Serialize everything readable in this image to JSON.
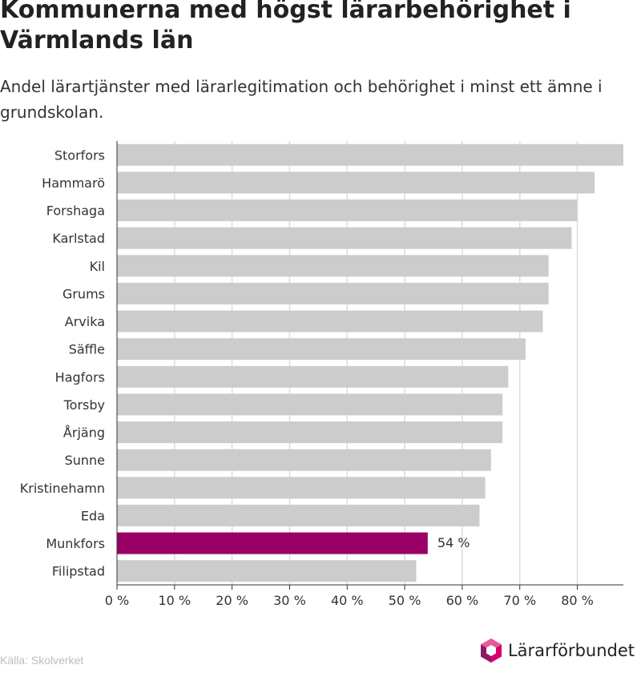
{
  "title": "Kommunerna med högst lärarbehörighet i Värmlands län",
  "subtitle": "Andel lärartjänster med lärarlegitimation och behörighet i minst ett ämne i grundskolan.",
  "source": "Källa: Skolverket",
  "brand": "Lärarförbundet",
  "colors": {
    "bar": "#cccccc",
    "highlight": "#990066",
    "grid": "#dddddd",
    "axis": "#333333"
  },
  "chart_data": {
    "type": "bar",
    "orientation": "horizontal",
    "categories": [
      "Storfors",
      "Hammarö",
      "Forshaga",
      "Karlstad",
      "Kil",
      "Grums",
      "Arvika",
      "Säffle",
      "Hagfors",
      "Torsby",
      "Årjäng",
      "Sunne",
      "Kristinehamn",
      "Eda",
      "Munkfors",
      "Filipstad"
    ],
    "values": [
      88,
      83,
      80,
      79,
      75,
      75,
      74,
      71,
      68,
      67,
      67,
      65,
      64,
      63,
      54,
      52
    ],
    "highlight": "Munkfors",
    "highlight_label": "54 %",
    "xlim": [
      0,
      88
    ],
    "xticks": [
      0,
      10,
      20,
      30,
      40,
      50,
      60,
      70,
      80
    ],
    "tick_labels": [
      "0 %",
      "10 %",
      "20 %",
      "30 %",
      "40 %",
      "50 %",
      "60 %",
      "70 %",
      "80 %"
    ],
    "grid": true
  }
}
